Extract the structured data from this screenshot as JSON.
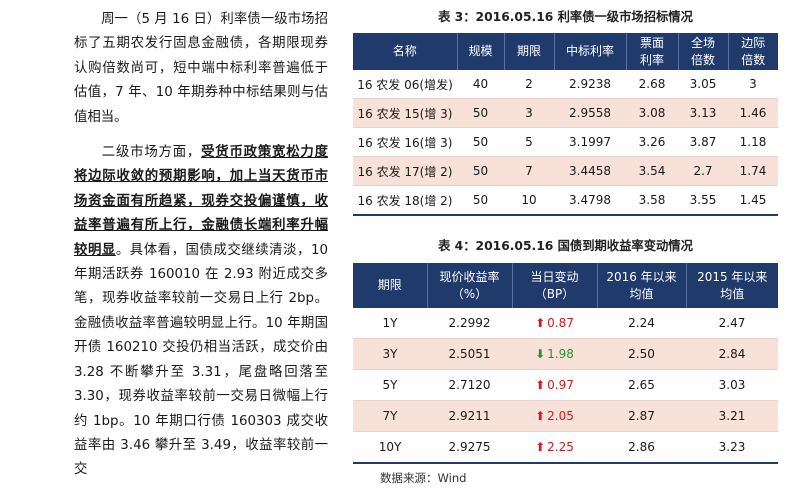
{
  "left_text": {
    "p1": "周一（5 月 16 日）利率债一级市场招标了五期农发行固息金融债，各期限现券认购倍数尚可，短中端中标利率普遍低于估值，7 年、10 年期券种中标结果则与估值相当。",
    "p2_bold": "受货币政策宽松力度将边际收敛的预期影响，加上当天货币市场资金面有所趋紧，现券交投偏谨慎，收益率普遍有所上行，金融债长端利率升幅较明显",
    "p2_prefix": "二级市场方面，",
    "p2_rest": "。具体看，国债成交继续清淡，10 年期活跃券 160010 在 2.93 附近成交多笔，现券收益率较前一交易日上行 2bp。金融债收益率普遍较明显上行。10 年期国开债 160210 交投仍相当活跃，成交价由 3.28 不断攀升至 3.31，尾盘略回落至 3.30，现券收益率较前一交易日微幅上行约 1bp。10 年期口行债 160303 成交收益率由 3.46 攀升至 3.49，收益率较前一交"
  },
  "table1": {
    "caption": "表 3：2016.05.16 利率债一级市场招标情况",
    "headers": [
      "名称",
      "规模",
      "期限",
      "中标利率",
      "票面利率",
      "全场倍数",
      "边际倍数"
    ],
    "rows": [
      [
        "16 农发 06(增发)",
        "40",
        "2",
        "2.9238",
        "2.68",
        "3.05",
        "3"
      ],
      [
        "16 农发 15(增 3)",
        "50",
        "3",
        "2.9558",
        "3.08",
        "3.13",
        "1.46"
      ],
      [
        "16 农发 16(增 3)",
        "50",
        "5",
        "3.1997",
        "3.26",
        "3.87",
        "1.18"
      ],
      [
        "16 农发 17(增 2)",
        "50",
        "7",
        "3.4458",
        "3.54",
        "2.7",
        "1.74"
      ],
      [
        "16 农发 18(增 2)",
        "50",
        "10",
        "3.4798",
        "3.58",
        "3.55",
        "1.45"
      ]
    ]
  },
  "table2": {
    "caption": "表 4：2016.05.16 国债到期收益率变动情况",
    "headers": [
      "期限",
      "现价收益率（%）",
      "当日变动（BP）",
      "2016 年以来均值",
      "2015 年以来均值"
    ],
    "rows": [
      {
        "term": "1Y",
        "yield": "2.2992",
        "dir": "up",
        "change": "0.87",
        "avg2016": "2.24",
        "avg2015": "2.47"
      },
      {
        "term": "3Y",
        "yield": "2.5051",
        "dir": "down",
        "change": "1.98",
        "avg2016": "2.50",
        "avg2015": "2.84"
      },
      {
        "term": "5Y",
        "yield": "2.7120",
        "dir": "up",
        "change": "0.97",
        "avg2016": "2.65",
        "avg2015": "3.03"
      },
      {
        "term": "7Y",
        "yield": "2.9211",
        "dir": "up",
        "change": "2.05",
        "avg2016": "2.87",
        "avg2015": "3.21"
      },
      {
        "term": "10Y",
        "yield": "2.9275",
        "dir": "up",
        "change": "2.25",
        "avg2016": "2.86",
        "avg2015": "3.23"
      }
    ],
    "source": "数据来源：Wind"
  },
  "colors": {
    "header_bg": "#1f3a6b",
    "stripe": "#f7e1d8",
    "up": "#d21a1a",
    "down": "#2a8f2a"
  }
}
